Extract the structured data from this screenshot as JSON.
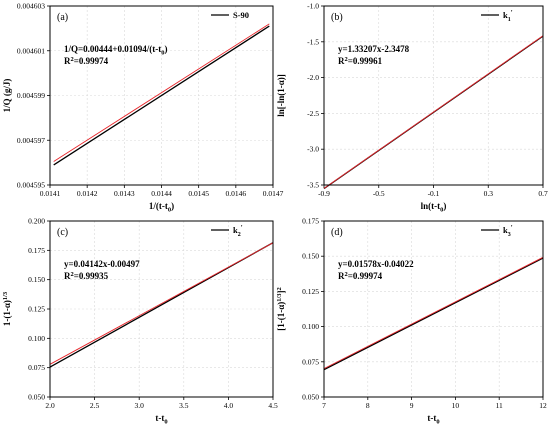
{
  "chart_data": [
    {
      "type": "line",
      "panel_label": "(a)",
      "xlabel": "1/(t-t",
      "xlabel_sub": "0",
      "xlabel_tail": ")",
      "ylabel": "1/Q (g/J)",
      "xlim": [
        0.0141,
        0.0147
      ],
      "ylim": [
        0.004595,
        0.004603
      ],
      "xticks": [
        "0.0141",
        "0.0142",
        "0.0143",
        "0.0144",
        "0.0145",
        "0.0146",
        "0.0147"
      ],
      "yticks": [
        "0.004595",
        "0.004597",
        "0.004599",
        "0.004601",
        "0.004603"
      ],
      "legend": "S-90",
      "legend_sup": "",
      "equation": "1/Q=0.00444+0.01094/(t-t",
      "equation_sub": "0",
      "equation_tail": ")",
      "r2": "=0.99974",
      "series": [
        {
          "name": "S-90",
          "color": "#000000",
          "x": [
            0.01411,
            0.01469
          ],
          "y": [
            0.0045959,
            0.0046021
          ]
        },
        {
          "name": "fit",
          "color": "#e8262b",
          "x": [
            0.01411,
            0.01469
          ],
          "y": [
            0.00459605,
            0.0046022
          ]
        }
      ]
    },
    {
      "type": "line",
      "panel_label": "(b)",
      "xlabel": "ln(t-t",
      "xlabel_sub": "0",
      "xlabel_tail": ")",
      "ylabel": "ln[-ln(1-α)]",
      "xlim": [
        -0.9,
        0.7
      ],
      "ylim": [
        -3.5,
        -1.0
      ],
      "xticks": [
        "-0.9",
        "-0.5",
        "-0.1",
        "0.3",
        "0.7"
      ],
      "yticks": [
        "-3.5",
        "-3.0",
        "-2.5",
        "-2.0",
        "-1.5",
        "-1.0"
      ],
      "legend": "k",
      "legend_sup": "1",
      "legend_tail": "'",
      "equation": "y=1.33207x-2.3478",
      "equation_sub": "",
      "equation_tail": "",
      "r2": "=0.99961",
      "series": [
        {
          "name": "k1'",
          "color": "#000000",
          "x": [
            -0.9,
            0.7
          ],
          "y": [
            -3.55,
            -1.42
          ]
        },
        {
          "name": "fit",
          "color": "#e8262b",
          "x": [
            -0.9,
            0.7
          ],
          "y": [
            -3.547,
            -1.415
          ]
        }
      ]
    },
    {
      "type": "line",
      "panel_label": "(c)",
      "xlabel": "t-t",
      "xlabel_sub": "0",
      "xlabel_tail": "",
      "ylabel": "1-(1-α)",
      "ylabel_sup": "1/3",
      "xlim": [
        2.0,
        4.5
      ],
      "ylim": [
        0.05,
        0.2
      ],
      "xticks": [
        "2.0",
        "2.5",
        "3.0",
        "3.5",
        "4.0",
        "4.5"
      ],
      "yticks": [
        "0.050",
        "0.075",
        "0.100",
        "0.125",
        "0.150",
        "0.175",
        "0.200"
      ],
      "legend": "k",
      "legend_sup": "2",
      "legend_tail": "'",
      "equation": "y=0.04142x-0.00497",
      "equation_sub": "",
      "equation_tail": "",
      "r2": "=0.99935",
      "series": [
        {
          "name": "k2'",
          "color": "#000000",
          "x": [
            2.0,
            4.5
          ],
          "y": [
            0.0755,
            0.1815
          ]
        },
        {
          "name": "fit",
          "color": "#e8262b",
          "x": [
            2.0,
            4.5
          ],
          "y": [
            0.0779,
            0.1814
          ]
        }
      ]
    },
    {
      "type": "line",
      "panel_label": "(d)",
      "xlabel": "t-t",
      "xlabel_sub": "0",
      "xlabel_tail": "",
      "ylabel": "[1-(1-α)",
      "ylabel_sup": "1/3",
      "ylabel_tail": "]",
      "ylabel_sup2": "2",
      "xlim": [
        7,
        12
      ],
      "ylim": [
        0.05,
        0.175
      ],
      "xticks": [
        "7",
        "8",
        "9",
        "10",
        "11",
        "12"
      ],
      "yticks": [
        "0.050",
        "0.075",
        "0.100",
        "0.125",
        "0.150",
        "0.175"
      ],
      "legend": "k",
      "legend_sup": "3",
      "legend_tail": "'",
      "equation": "y=0.01578x-0.04022",
      "equation_sub": "",
      "equation_tail": "",
      "r2": "=0.99974",
      "series": [
        {
          "name": "k3'",
          "color": "#000000",
          "x": [
            7,
            12
          ],
          "y": [
            0.0694,
            0.1487
          ]
        },
        {
          "name": "fit",
          "color": "#e8262b",
          "x": [
            7,
            12
          ],
          "y": [
            0.0702,
            0.1492
          ]
        }
      ]
    }
  ]
}
